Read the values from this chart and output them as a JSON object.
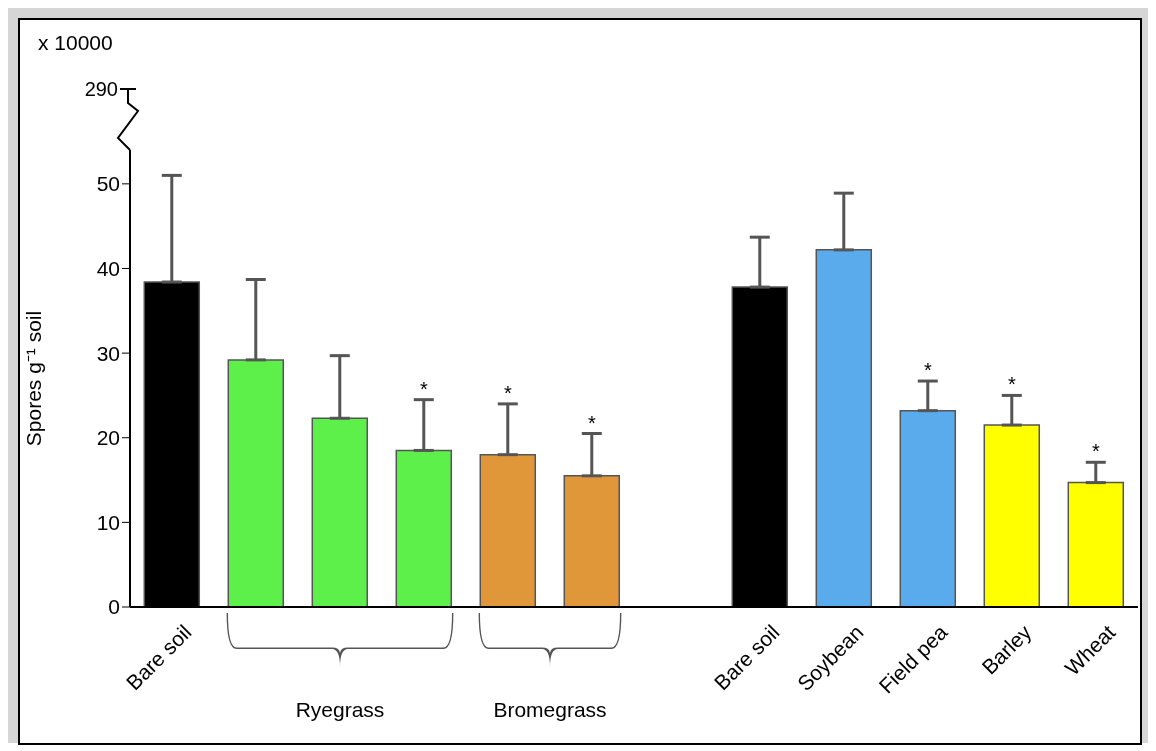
{
  "chart_data": {
    "type": "bar",
    "ylabel": "Spores g⁻¹ soil",
    "categories": [
      "Bare soil",
      null,
      null,
      null,
      null,
      null,
      null,
      "Bare soil",
      "Soybean",
      "Field pea",
      "Barley",
      "Wheat"
    ],
    "values": [
      38.4,
      29.2,
      22.3,
      18.5,
      18.0,
      15.5,
      null,
      37.8,
      42.2,
      23.2,
      21.5,
      14.7
    ],
    "colors": [
      "#000000",
      "#5ef04a",
      "#5ef04a",
      "#5ef04a",
      "#e0973a",
      "#e0973a",
      "#ffffff",
      "#000000",
      "#5aabeb",
      "#5aabeb",
      "#ffff00",
      "#ffff00"
    ],
    "errors": [
      [
        38.4,
        51.0
      ],
      [
        29.2,
        38.7
      ],
      [
        22.3,
        29.7
      ],
      [
        18.5,
        24.5
      ],
      [
        18.0,
        24.0
      ],
      [
        15.5,
        20.5
      ],
      null,
      [
        37.8,
        43.7
      ],
      [
        42.2,
        48.9
      ],
      [
        23.2,
        26.7
      ],
      [
        21.5,
        25.0
      ],
      [
        14.7,
        17.1
      ]
    ],
    "value_labels": [
      null,
      null,
      null,
      "*",
      "*",
      "*",
      null,
      null,
      null,
      "*",
      "*",
      "*"
    ],
    "annotations": [
      "x 10000",
      "290",
      "Ryegrass",
      "Bromegrass"
    ],
    "ylim": [
      0,
      54
    ],
    "yticks": [
      0,
      10,
      20,
      30,
      40,
      50
    ]
  }
}
